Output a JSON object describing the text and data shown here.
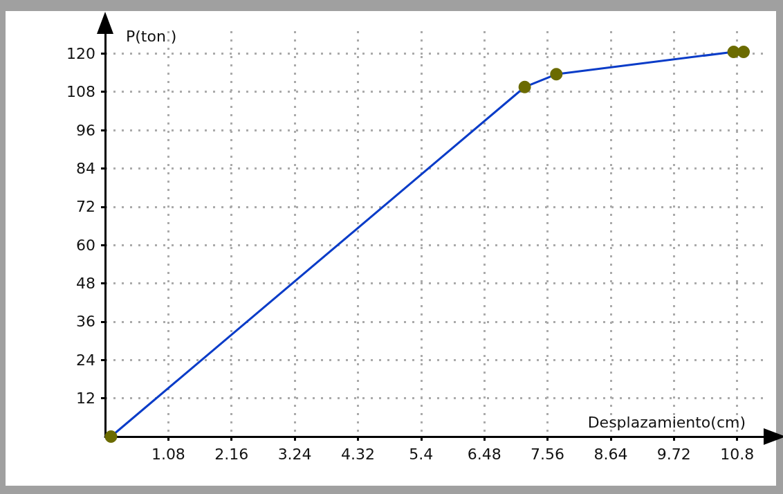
{
  "chart_data": {
    "type": "line",
    "xlabel": "Desplazamiento(cm)",
    "ylabel": "P(ton )",
    "x": [
      0.1,
      7.17,
      7.71,
      10.74,
      10.91
    ],
    "series": [
      {
        "color": "#0a3cc8",
        "colors": [
          "#6b6b00",
          "#6b6b00",
          "#6b6b00",
          "#6b6b00",
          "#6b6b00"
        ],
        "values": [
          0,
          109.5,
          113.5,
          120.5,
          120.5
        ]
      }
    ],
    "xlim": [
      0,
      11.3
    ],
    "xticks": [
      1.08,
      2.16,
      3.24,
      4.32,
      5.4,
      6.48,
      7.56,
      8.64,
      9.72,
      10.8
    ],
    "ylim": [
      0,
      127
    ],
    "yticks": [
      12,
      24,
      36,
      48,
      60,
      72,
      84,
      96,
      108,
      120
    ],
    "grid": true,
    "marker": "circle",
    "line_style": "solid"
  }
}
